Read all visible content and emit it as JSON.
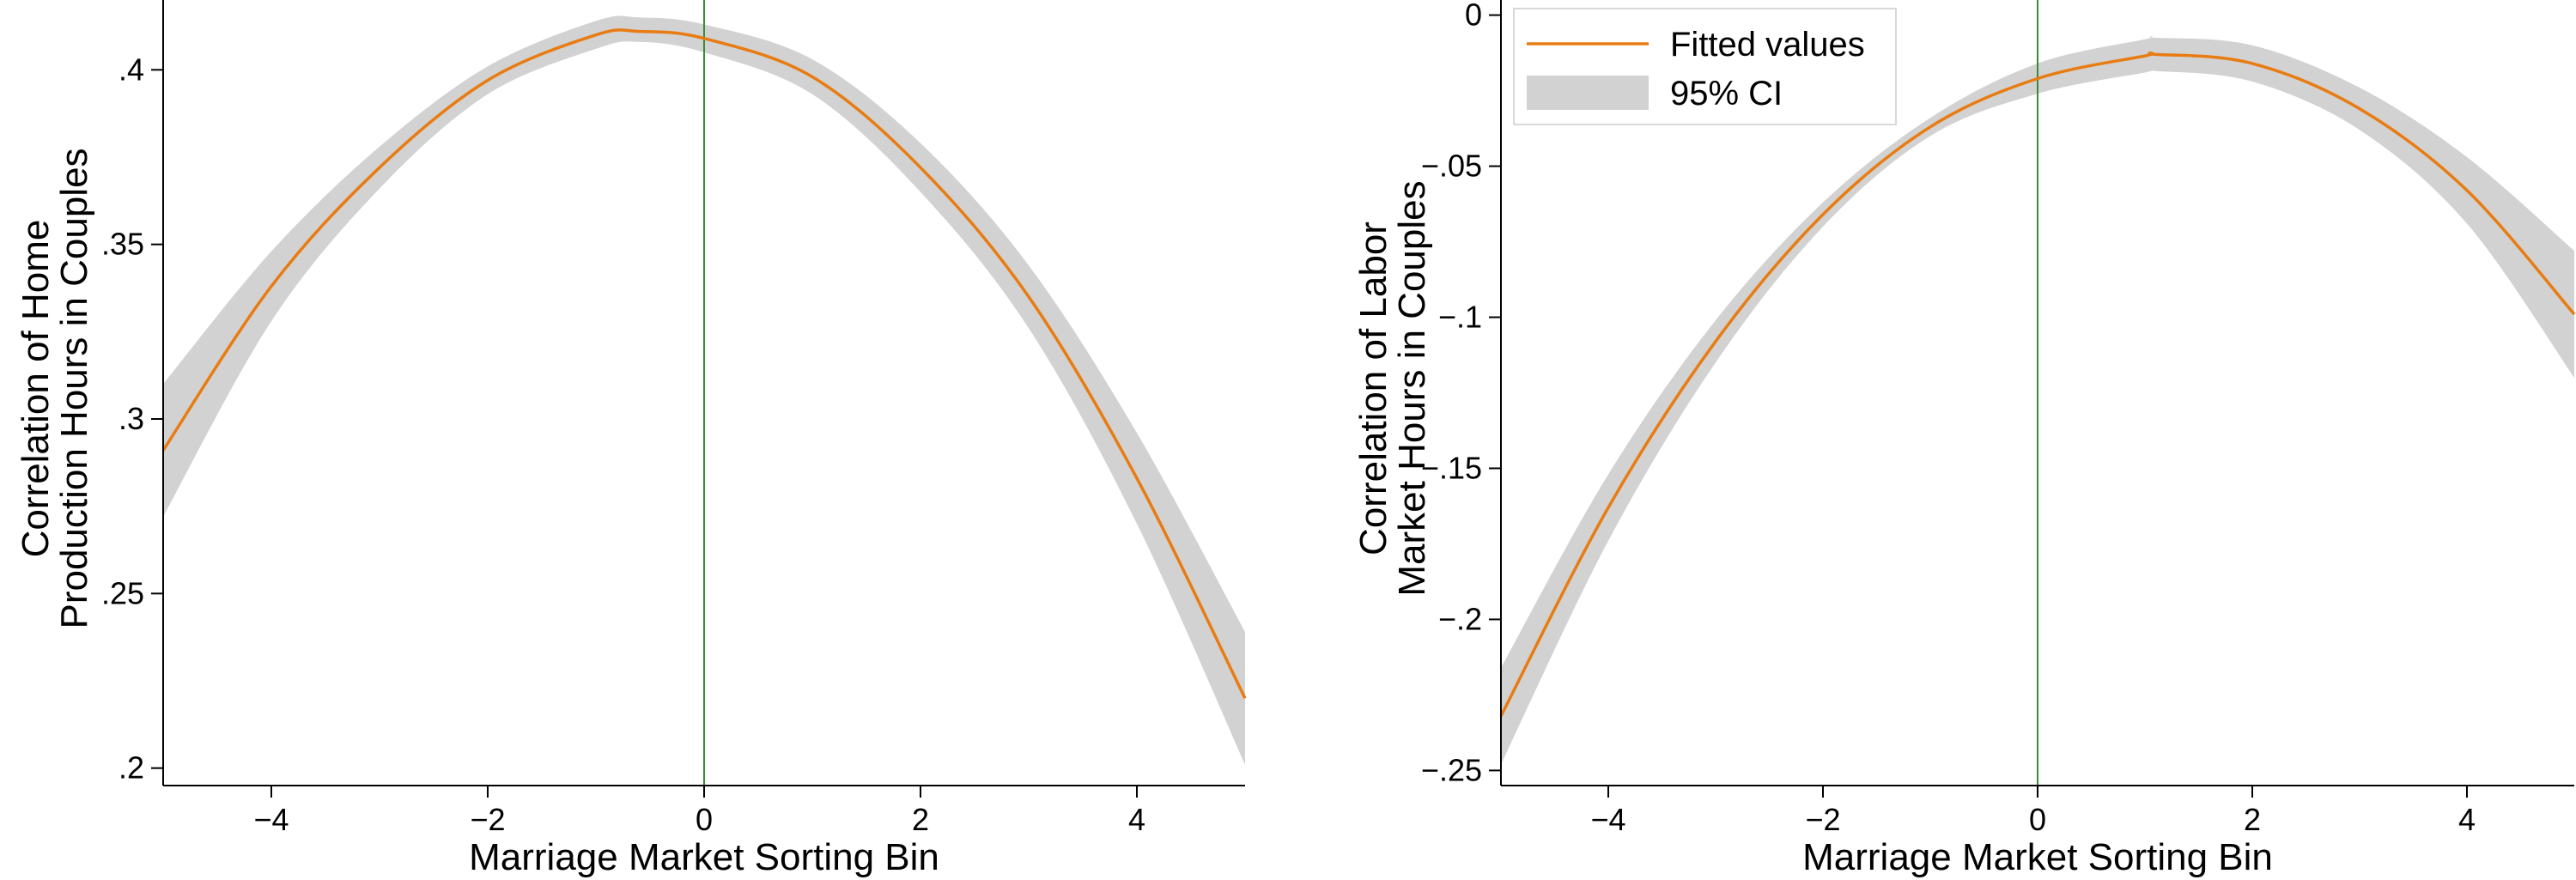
{
  "chart_data": [
    {
      "type": "line",
      "xlabel": "Marriage Market Sorting Bin",
      "ylabel": [
        "Correlation of Home",
        "Production Hours in Couples"
      ],
      "xlim": [
        -5,
        5
      ],
      "ylim": [
        0.195,
        0.42
      ],
      "xticks": [
        -4,
        -2,
        0,
        2,
        4
      ],
      "xtick_labels": [
        "−4",
        "−2",
        "0",
        "2",
        "4"
      ],
      "yticks": [
        0.2,
        0.25,
        0.3,
        0.35,
        0.4
      ],
      "ytick_labels": [
        ".2",
        ".25",
        ".3",
        ".35",
        ".4"
      ],
      "vline_x": 0,
      "grid": false,
      "series": [
        {
          "name": "Fitted values",
          "x": [
            -5,
            -4,
            -3,
            -2,
            -1,
            -0.6,
            0,
            1,
            2,
            3,
            4,
            5
          ],
          "y": [
            0.291,
            0.338,
            0.372,
            0.397,
            0.41,
            0.411,
            0.409,
            0.398,
            0.372,
            0.335,
            0.283,
            0.22
          ],
          "ci_lower": [
            0.272,
            0.328,
            0.366,
            0.393,
            0.406,
            0.408,
            0.405,
            0.393,
            0.365,
            0.326,
            0.27,
            0.201
          ],
          "ci_upper": [
            0.31,
            0.348,
            0.378,
            0.401,
            0.414,
            0.415,
            0.413,
            0.403,
            0.379,
            0.344,
            0.296,
            0.239
          ]
        }
      ]
    },
    {
      "type": "line",
      "xlabel": "Marriage Market Sorting Bin",
      "ylabel": [
        "Correlation of Labor",
        "Market Hours in Couples"
      ],
      "xlim": [
        -5,
        5
      ],
      "ylim": [
        -0.255,
        0.005
      ],
      "xticks": [
        -4,
        -2,
        0,
        2,
        4
      ],
      "xtick_labels": [
        "−4",
        "−2",
        "0",
        "2",
        "4"
      ],
      "yticks": [
        0,
        -0.05,
        -0.1,
        -0.15,
        -0.2,
        -0.25
      ],
      "ytick_labels": [
        "0",
        "−.05",
        "−.1",
        "−.15",
        "−.2",
        "−.25"
      ],
      "vline_x": 0,
      "grid": false,
      "legend_position": "top-left",
      "legend": [
        "Fitted values",
        "95% CI"
      ],
      "series": [
        {
          "name": "Fitted values",
          "x": [
            -5,
            -4,
            -3,
            -2,
            -1,
            0,
            1,
            1.1,
            2,
            3,
            4,
            5
          ],
          "y": [
            -0.232,
            -0.163,
            -0.108,
            -0.066,
            -0.037,
            -0.021,
            -0.0135,
            -0.013,
            -0.016,
            -0.031,
            -0.058,
            -0.099
          ],
          "ci_lower": [
            -0.248,
            -0.174,
            -0.115,
            -0.07,
            -0.04,
            -0.026,
            -0.019,
            -0.0185,
            -0.022,
            -0.038,
            -0.069,
            -0.12
          ],
          "ci_upper": [
            -0.216,
            -0.152,
            -0.101,
            -0.062,
            -0.034,
            -0.016,
            -0.008,
            -0.0075,
            -0.01,
            -0.024,
            -0.047,
            -0.078
          ]
        }
      ]
    }
  ],
  "colors": {
    "fit_line": "#e87c12",
    "ci_band": "#d2d2d2",
    "vline": "#3a8a3a",
    "axis": "#000000",
    "legend_border": "#d9d9d9"
  }
}
